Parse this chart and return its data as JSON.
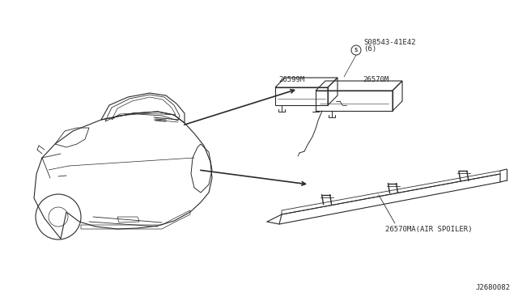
{
  "bg_color": "#ffffff",
  "line_color": "#2a2a2a",
  "diagram_id": "J2680082",
  "part_labels": {
    "part1_id": "26599M",
    "part2_id": "26570M",
    "part3_id": "26570MA(AIR SPOILER)",
    "bolt_id": "S08543-41E42",
    "bolt_qty": "(6)"
  }
}
